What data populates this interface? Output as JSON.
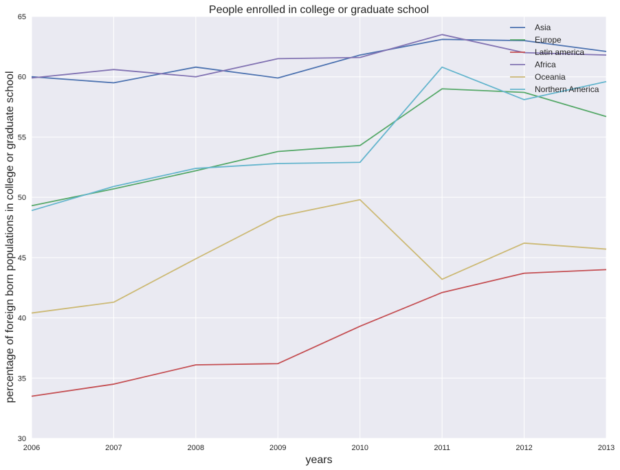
{
  "chart_data": {
    "type": "line",
    "title": "People enrolled in college or graduate school",
    "xlabel": "years",
    "ylabel": "percentage of foreign born populations in college or graduate school",
    "x": [
      2006,
      2007,
      2008,
      2009,
      2010,
      2011,
      2012,
      2013
    ],
    "xlim": [
      2006,
      2013
    ],
    "ylim": [
      30,
      65
    ],
    "xticks": [
      "2006",
      "2007",
      "2008",
      "2009",
      "2010",
      "2011",
      "2012",
      "2013"
    ],
    "yticks": [
      30,
      35,
      40,
      45,
      50,
      55,
      60,
      65
    ],
    "grid": true,
    "legend_position": "top-right",
    "series": [
      {
        "name": "Asia",
        "color": "#4c72b0",
        "values": [
          60.0,
          59.5,
          60.8,
          59.9,
          61.8,
          63.1,
          63.0,
          62.1
        ]
      },
      {
        "name": "Europe",
        "color": "#55a868",
        "values": [
          49.3,
          50.7,
          52.2,
          53.8,
          54.3,
          59.0,
          58.7,
          56.7
        ]
      },
      {
        "name": "Latin america",
        "color": "#c44e52",
        "values": [
          33.5,
          34.5,
          36.1,
          36.2,
          39.3,
          42.1,
          43.7,
          44.0
        ]
      },
      {
        "name": "Africa",
        "color": "#8172b2",
        "values": [
          59.9,
          60.6,
          60.0,
          61.5,
          61.6,
          63.5,
          62.0,
          61.8
        ]
      },
      {
        "name": "Oceania",
        "color": "#ccb974",
        "values": [
          40.4,
          41.3,
          44.9,
          48.4,
          49.8,
          43.2,
          46.2,
          45.7
        ]
      },
      {
        "name": "Northern America",
        "color": "#64b5cd",
        "values": [
          48.9,
          50.9,
          52.4,
          52.8,
          52.9,
          60.8,
          58.1,
          59.6
        ]
      }
    ]
  }
}
